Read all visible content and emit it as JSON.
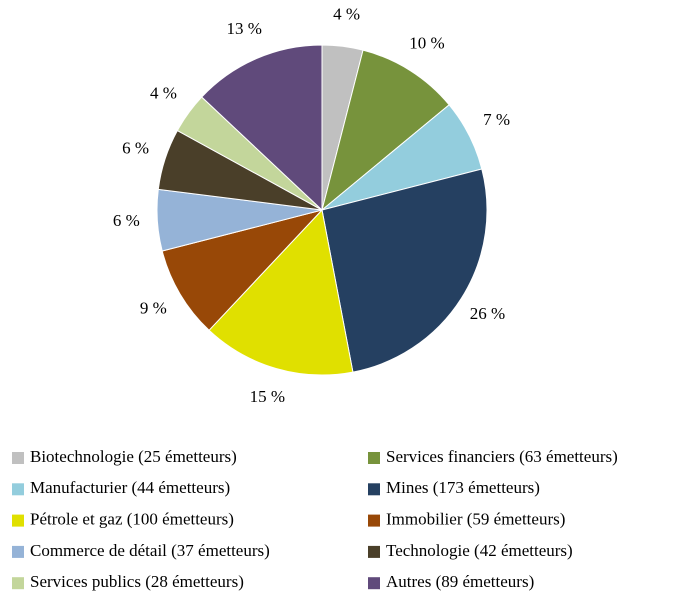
{
  "chart_data": {
    "type": "pie",
    "categories": [
      "Biotechnologie (25 émetteurs)",
      "Services financiers (63 émetteurs)",
      "Manufacturier (44 émetteurs)",
      "Mines (173 émetteurs)",
      "Pétrole et gaz (100 émetteurs)",
      "Immobilier (59 émetteurs)",
      "Commerce de détail (37 émetteurs)",
      "Technologie (42 émetteurs)",
      "Services publics (28 émetteurs)",
      "Autres (89 émetteurs)"
    ],
    "values": [
      4,
      10,
      7,
      26,
      15,
      9,
      6,
      6,
      4,
      13
    ],
    "value_labels": [
      "4 %",
      "10 %",
      "7 %",
      "26 %",
      "15 %",
      "9 %",
      "6 %",
      "6 %",
      "4 %",
      "13 %"
    ],
    "colors": [
      "#c0c0c0",
      "#77933c",
      "#93cddd",
      "#254061",
      "#e0e000",
      "#984807",
      "#95b3d7",
      "#4a3f29",
      "#c3d69b",
      "#604a7b"
    ],
    "legend": "bottom"
  }
}
